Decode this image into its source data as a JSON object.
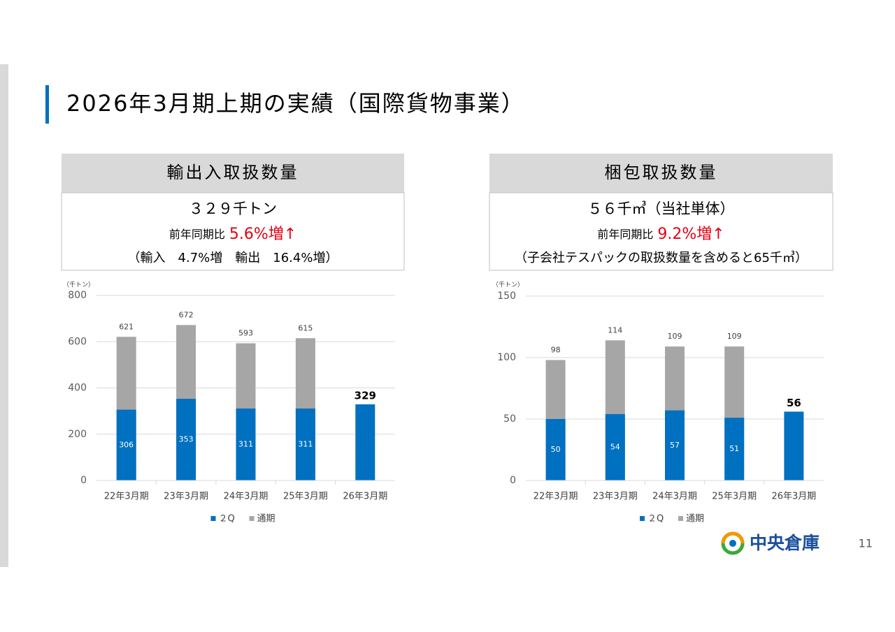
{
  "title": "2026年3月期上期の実績（国際貨物事業）",
  "page_number": "11",
  "logo_text": "中央倉庫",
  "chart_data": [
    {
      "type": "bar",
      "overlap": true,
      "title": "輸出入取扱数量",
      "headline": "３２９千トン",
      "comparison_label": "前年同期比",
      "comparison_value": "5.6%増↑",
      "comparison_color": "#e60012",
      "note": "（輸入　4.7%増　輸出　16.4%増）",
      "y_unit": "（千トン）",
      "categories": [
        "22年3月期",
        "23年3月期",
        "24年3月期",
        "25年3月期",
        "26年3月期"
      ],
      "series": [
        {
          "name": "通期",
          "color": "#a6a6a6",
          "values": [
            621,
            672,
            593,
            615,
            null
          ]
        },
        {
          "name": "２Q",
          "color": "#0070c0",
          "values": [
            306,
            353,
            311,
            311,
            329
          ]
        }
      ],
      "ylim": [
        0,
        800
      ],
      "yticks": [
        0,
        200,
        400,
        600,
        800
      ],
      "grid": true,
      "legend": "bottom"
    },
    {
      "type": "bar",
      "overlap": true,
      "title": "梱包取扱数量",
      "headline": "５６千㎥（当社単体）",
      "comparison_label": "前年同期比",
      "comparison_value": "9.2%増↑",
      "comparison_color": "#e60012",
      "note": "（子会社テスパックの取扱数量を含めると65千㎥）",
      "y_unit": "（千トン）",
      "categories": [
        "22年3月期",
        "23年3月期",
        "24年3月期",
        "25年3月期",
        "26年3月期"
      ],
      "series": [
        {
          "name": "通期",
          "color": "#a6a6a6",
          "values": [
            98,
            114,
            109,
            109,
            null
          ]
        },
        {
          "name": "２Q",
          "color": "#0070c0",
          "values": [
            50,
            54,
            57,
            51,
            56
          ]
        }
      ],
      "ylim": [
        0,
        150
      ],
      "yticks": [
        0,
        50,
        100,
        150
      ],
      "grid": true,
      "legend": "bottom"
    }
  ]
}
